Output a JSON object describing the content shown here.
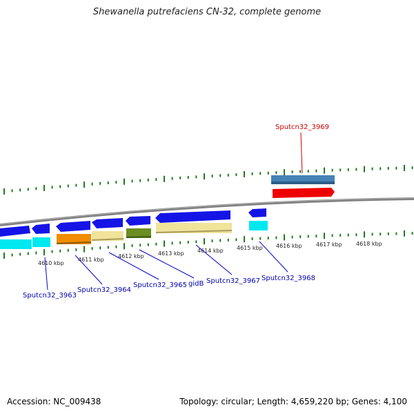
{
  "title": "Shewanella putrefaciens CN-32, complete genome",
  "footer": {
    "accession": "Accession: NC_009438",
    "topology": "Topology: circular; Length: 4,659,220 bp; Genes: 4,100"
  },
  "scale_labels": [
    "4610 kbp",
    "4611 kbp",
    "4612 kbp",
    "4613 kbp",
    "4614 kbp",
    "4615 kbp",
    "4616 kbp",
    "4617 kbp",
    "4618 kbp"
  ],
  "gene_labels": {
    "g3963": "Sputcn32_3963",
    "g3964": "Sputcn32_3964",
    "g3965": "Sputcn32_3965",
    "gidB": "gidB",
    "g3967": "Sputcn32_3967",
    "g3968": "Sputcn32_3968",
    "g3969": "Sputcn32_3969"
  },
  "colors": {
    "backbone": "#808080",
    "tick": "#1f7a1f",
    "cds_blue": "#1414e6",
    "cyan": "#00e8f0",
    "orange": "#f08c00",
    "khaki": "#f0e39a",
    "olive": "#6b8e23",
    "steelblue": "#4682b4",
    "red": "#ee0000",
    "label_blue": "#0000aa",
    "label_red": "#cc0000"
  }
}
